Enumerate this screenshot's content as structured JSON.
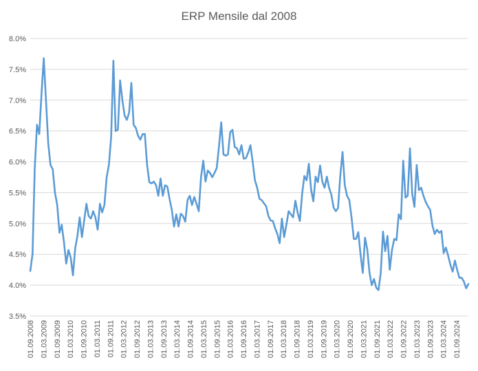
{
  "chart_data": {
    "type": "line",
    "title": "ERP Mensile dal 2008",
    "xlabel": "",
    "ylabel": "",
    "ylim": [
      3.5,
      8.0
    ],
    "y_ticks": [
      "3.5%",
      "4.0%",
      "4.5%",
      "5.0%",
      "5.5%",
      "6.0%",
      "6.5%",
      "7.0%",
      "7.5%",
      "8.0%"
    ],
    "x_ticks": [
      "01.09.2008",
      "01.03.2009",
      "01.09.2009",
      "01.03.2010",
      "01.09.2010",
      "01.03.2011",
      "01.09.2011",
      "01.03.2012",
      "01.09.2012",
      "01.03.2013",
      "01.09.2013",
      "01.03.2014",
      "01.09.2014",
      "01.03.2015",
      "01.09.2015",
      "01.03.2016",
      "01.09.2016",
      "01.03.2017",
      "01.09.2017",
      "01.03.2018",
      "01.09.2018",
      "01.03.2019",
      "01.09.2019",
      "01.03.2020",
      "01.09.2020",
      "01.03.2021",
      "01.09.2021",
      "01.03.2022",
      "01.09.2022",
      "01.03.2023",
      "01.09.2023",
      "01.03.2024",
      "01.09.2024"
    ],
    "grid": true,
    "legend": "none",
    "line_color": "#5b9bd5",
    "series": [
      {
        "values": [
          4.23,
          4.5,
          5.9,
          6.6,
          6.45,
          7.1,
          7.68,
          7.0,
          6.3,
          5.95,
          5.88,
          5.5,
          5.3,
          4.85,
          4.98,
          4.7,
          4.35,
          4.57,
          4.45,
          4.16,
          4.6,
          4.8,
          5.1,
          4.78,
          5.05,
          5.32,
          5.12,
          5.08,
          5.2,
          5.1,
          4.9,
          5.32,
          5.18,
          5.3,
          5.75,
          5.95,
          6.4,
          7.64,
          6.5,
          6.52,
          7.32,
          7.0,
          6.75,
          6.68,
          6.8,
          7.28,
          6.6,
          6.55,
          6.42,
          6.36,
          6.45,
          6.45,
          5.95,
          5.67,
          5.65,
          5.68,
          5.62,
          5.45,
          5.73,
          5.45,
          5.62,
          5.6,
          5.4,
          5.22,
          4.95,
          5.15,
          4.95,
          5.16,
          5.12,
          5.03,
          5.38,
          5.45,
          5.3,
          5.43,
          5.32,
          5.2,
          5.75,
          6.02,
          5.68,
          5.86,
          5.82,
          5.75,
          5.82,
          5.9,
          6.25,
          6.64,
          6.12,
          6.1,
          6.12,
          6.48,
          6.52,
          6.24,
          6.22,
          6.12,
          6.27,
          6.05,
          6.06,
          6.15,
          6.27,
          6.0,
          5.7,
          5.58,
          5.4,
          5.38,
          5.33,
          5.28,
          5.12,
          5.05,
          5.04,
          4.92,
          4.83,
          4.68,
          5.08,
          4.78,
          4.98,
          5.2,
          5.15,
          5.1,
          5.37,
          5.18,
          5.04,
          5.48,
          5.77,
          5.7,
          5.97,
          5.55,
          5.36,
          5.76,
          5.67,
          5.94,
          5.68,
          5.58,
          5.76,
          5.58,
          5.47,
          5.26,
          5.2,
          5.25,
          5.78,
          6.16,
          5.62,
          5.45,
          5.38,
          5.1,
          4.75,
          4.75,
          4.86,
          4.5,
          4.2,
          4.77,
          4.58,
          4.2,
          4.0,
          4.1,
          3.96,
          3.92,
          4.2,
          4.87,
          4.55,
          4.8,
          4.25,
          4.57,
          4.75,
          4.73,
          5.15,
          5.07,
          6.02,
          5.42,
          5.45,
          6.22,
          5.48,
          5.27,
          5.95,
          5.54,
          5.58,
          5.45,
          5.35,
          5.28,
          5.22,
          4.97,
          4.83,
          4.9,
          4.85,
          4.88,
          4.52,
          4.61,
          4.48,
          4.33,
          4.22,
          4.4,
          4.25,
          4.12,
          4.12,
          4.06,
          3.95,
          4.02
        ]
      }
    ]
  }
}
